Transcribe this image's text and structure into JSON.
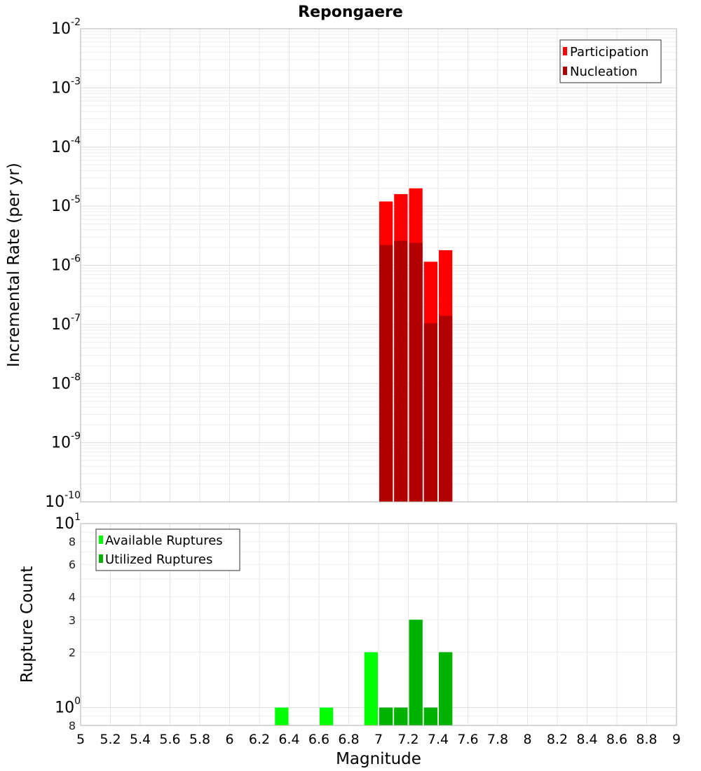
{
  "colors": {
    "participation": "#ff0000",
    "nucleation": "#b20000",
    "available": "#00ff00",
    "utilized": "#00b200",
    "grid": "#e6e6e6",
    "frame": "#b0b0b0"
  },
  "chart_data": {
    "type": "bar",
    "title": "Repongaere",
    "xlabel": "Magnitude",
    "xlim": [
      5,
      9
    ],
    "x_ticks": [
      "5",
      "5.2",
      "5.4",
      "5.6",
      "5.8",
      "6",
      "6.2",
      "6.4",
      "6.6",
      "6.8",
      "7",
      "7.2",
      "7.4",
      "7.6",
      "7.8",
      "8",
      "8.2",
      "8.4",
      "8.6",
      "8.8",
      "9"
    ],
    "panels": [
      {
        "name": "rate",
        "ylabel": "Incremental Rate (per yr)",
        "yscale": "log",
        "ylim": [
          1e-10,
          0.01
        ],
        "y_ticks": [
          {
            "value": 0.01,
            "base": "10",
            "exp": "-2"
          },
          {
            "value": 0.001,
            "base": "10",
            "exp": "-3"
          },
          {
            "value": 0.0001,
            "base": "10",
            "exp": "-4"
          },
          {
            "value": 1e-05,
            "base": "10",
            "exp": "-5"
          },
          {
            "value": 1e-06,
            "base": "10",
            "exp": "-6"
          },
          {
            "value": 1e-07,
            "base": "10",
            "exp": "-7"
          },
          {
            "value": 1e-08,
            "base": "10",
            "exp": "-8"
          },
          {
            "value": 1e-09,
            "base": "10",
            "exp": "-9"
          },
          {
            "value": 1e-10,
            "base": "10",
            "exp": "-10"
          }
        ],
        "legend": [
          "Participation",
          "Nucleation"
        ],
        "legend_position": "top-right",
        "bar_width": 0.1,
        "series": [
          {
            "name": "Participation",
            "color_key": "participation",
            "x": [
              7.05,
              7.15,
              7.25,
              7.35,
              7.45
            ],
            "values": [
              1.2e-05,
              1.6e-05,
              2e-05,
              1.15e-06,
              1.8e-06
            ]
          },
          {
            "name": "Nucleation",
            "color_key": "nucleation",
            "x": [
              7.05,
              7.15,
              7.25,
              7.35,
              7.45
            ],
            "values": [
              2.2e-06,
              2.6e-06,
              2.4e-06,
              1.05e-07,
              1.4e-07
            ]
          }
        ]
      },
      {
        "name": "count",
        "ylabel": "Rupture Count",
        "yscale": "log",
        "ylim": [
          0.8,
          10
        ],
        "y_ticks": [
          {
            "value": 10,
            "base": "10",
            "exp": "1"
          },
          {
            "value": 8,
            "base": "8",
            "exp": ""
          },
          {
            "value": 6,
            "base": "6",
            "exp": ""
          },
          {
            "value": 4,
            "base": "4",
            "exp": ""
          },
          {
            "value": 3,
            "base": "3",
            "exp": ""
          },
          {
            "value": 2,
            "base": "2",
            "exp": ""
          },
          {
            "value": 1,
            "base": "10",
            "exp": "0"
          },
          {
            "value": 0.8,
            "base": "8",
            "exp": ""
          }
        ],
        "legend": [
          "Available Ruptures",
          "Utilized Ruptures"
        ],
        "legend_position": "top-left",
        "bar_width": 0.1,
        "series": [
          {
            "name": "Available Ruptures",
            "color_key": "available",
            "x": [
              6.35,
              6.65,
              6.95,
              7.05,
              7.15,
              7.25,
              7.35,
              7.45
            ],
            "values": [
              1,
              1,
              2,
              1,
              1,
              3,
              1,
              2
            ]
          },
          {
            "name": "Utilized Ruptures",
            "color_key": "utilized",
            "x": [
              7.05,
              7.15,
              7.25,
              7.35,
              7.45
            ],
            "values": [
              1,
              1,
              3,
              1,
              2
            ]
          }
        ]
      }
    ]
  }
}
